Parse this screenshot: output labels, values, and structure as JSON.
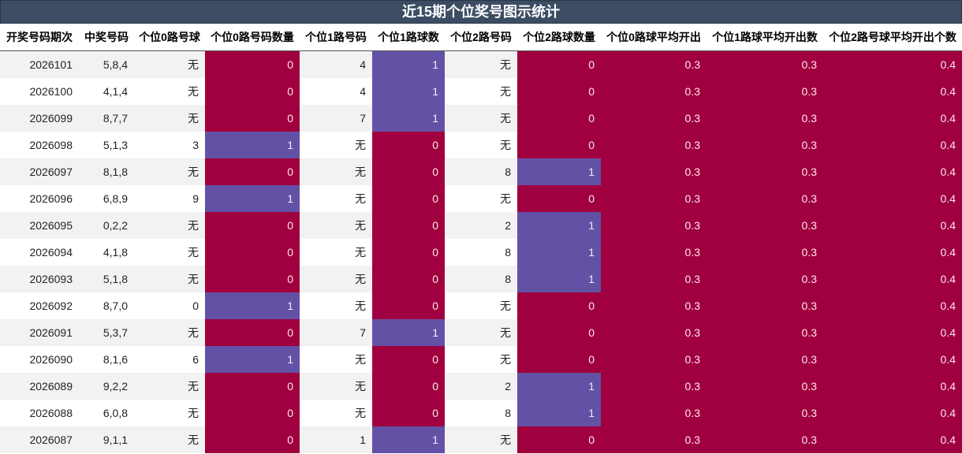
{
  "title": "近15期个位奖号图示统计",
  "columns": [
    "开奖号码期次",
    "中奖号码",
    "个位0路号球",
    "个位0路号码数量",
    "个位1路号码",
    "个位1路球数",
    "个位2路号码",
    "个位2路球数量",
    "个位0路球平均开出",
    "个位1路球平均开出数",
    "个位2路号球平均开出个数"
  ],
  "rows": [
    [
      "2026101",
      "5,8,4",
      "无",
      "0",
      "4",
      "1",
      "无",
      "0",
      "0.3",
      "0.3",
      "0.4"
    ],
    [
      "2026100",
      "4,1,4",
      "无",
      "0",
      "4",
      "1",
      "无",
      "0",
      "0.3",
      "0.3",
      "0.4"
    ],
    [
      "2026099",
      "8,7,7",
      "无",
      "0",
      "7",
      "1",
      "无",
      "0",
      "0.3",
      "0.3",
      "0.4"
    ],
    [
      "2026098",
      "5,1,3",
      "3",
      "1",
      "无",
      "0",
      "无",
      "0",
      "0.3",
      "0.3",
      "0.4"
    ],
    [
      "2026097",
      "8,1,8",
      "无",
      "0",
      "无",
      "0",
      "8",
      "1",
      "0.3",
      "0.3",
      "0.4"
    ],
    [
      "2026096",
      "6,8,9",
      "9",
      "1",
      "无",
      "0",
      "无",
      "0",
      "0.3",
      "0.3",
      "0.4"
    ],
    [
      "2026095",
      "0,2,2",
      "无",
      "0",
      "无",
      "0",
      "2",
      "1",
      "0.3",
      "0.3",
      "0.4"
    ],
    [
      "2026094",
      "4,1,8",
      "无",
      "0",
      "无",
      "0",
      "8",
      "1",
      "0.3",
      "0.3",
      "0.4"
    ],
    [
      "2026093",
      "5,1,8",
      "无",
      "0",
      "无",
      "0",
      "8",
      "1",
      "0.3",
      "0.3",
      "0.4"
    ],
    [
      "2026092",
      "8,7,0",
      "0",
      "1",
      "无",
      "0",
      "无",
      "0",
      "0.3",
      "0.3",
      "0.4"
    ],
    [
      "2026091",
      "5,3,7",
      "无",
      "0",
      "7",
      "1",
      "无",
      "0",
      "0.3",
      "0.3",
      "0.4"
    ],
    [
      "2026090",
      "8,1,6",
      "6",
      "1",
      "无",
      "0",
      "无",
      "0",
      "0.3",
      "0.3",
      "0.4"
    ],
    [
      "2026089",
      "9,2,2",
      "无",
      "0",
      "无",
      "0",
      "2",
      "1",
      "0.3",
      "0.3",
      "0.4"
    ],
    [
      "2026088",
      "6,0,8",
      "无",
      "0",
      "无",
      "0",
      "8",
      "1",
      "0.3",
      "0.3",
      "0.4"
    ],
    [
      "2026087",
      "9,1,1",
      "无",
      "0",
      "1",
      "1",
      "无",
      "0",
      "0.3",
      "0.3",
      "0.4"
    ]
  ],
  "colors": {
    "header_bg": "#3c4d63",
    "zero_fill": "#a0003f",
    "one_fill": "#6351a6",
    "stripe": "#f2f2f2"
  }
}
